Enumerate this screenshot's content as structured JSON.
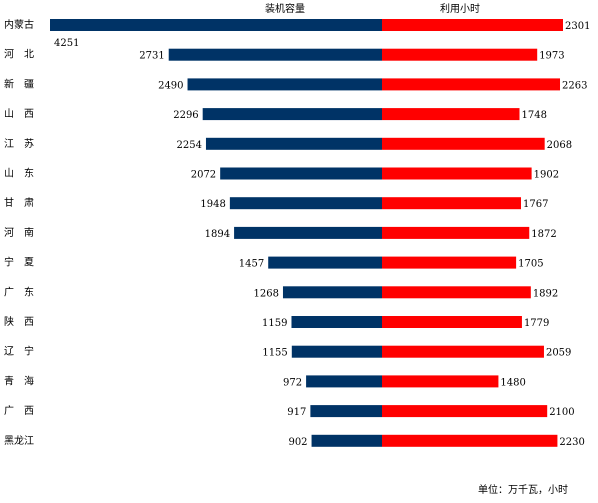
{
  "chart_data": {
    "type": "bar",
    "orientation": "horizontal-diverging",
    "categories": [
      "内蒙古",
      "河　北",
      "新　疆",
      "山　西",
      "江　苏",
      "山　东",
      "甘　肃",
      "河　南",
      "宁　夏",
      "广　东",
      "陕　西",
      "辽　宁",
      "青　海",
      "广　西",
      "黑龙江"
    ],
    "series": [
      {
        "name": "装机容量",
        "values": [
          4251,
          2731,
          2490,
          2296,
          2254,
          2072,
          1948,
          1894,
          1457,
          1268,
          1159,
          1155,
          972,
          917,
          902
        ],
        "color": "#003366",
        "side": "left"
      },
      {
        "name": "利用小时",
        "values": [
          2301,
          1973,
          2263,
          1748,
          2068,
          1902,
          1767,
          1872,
          1705,
          1892,
          1779,
          2059,
          1480,
          2100,
          2230
        ],
        "color": "#ff0000",
        "side": "right"
      }
    ],
    "unit_note": "单位：万千瓦，小时",
    "legend_position": "top",
    "grid": false
  }
}
